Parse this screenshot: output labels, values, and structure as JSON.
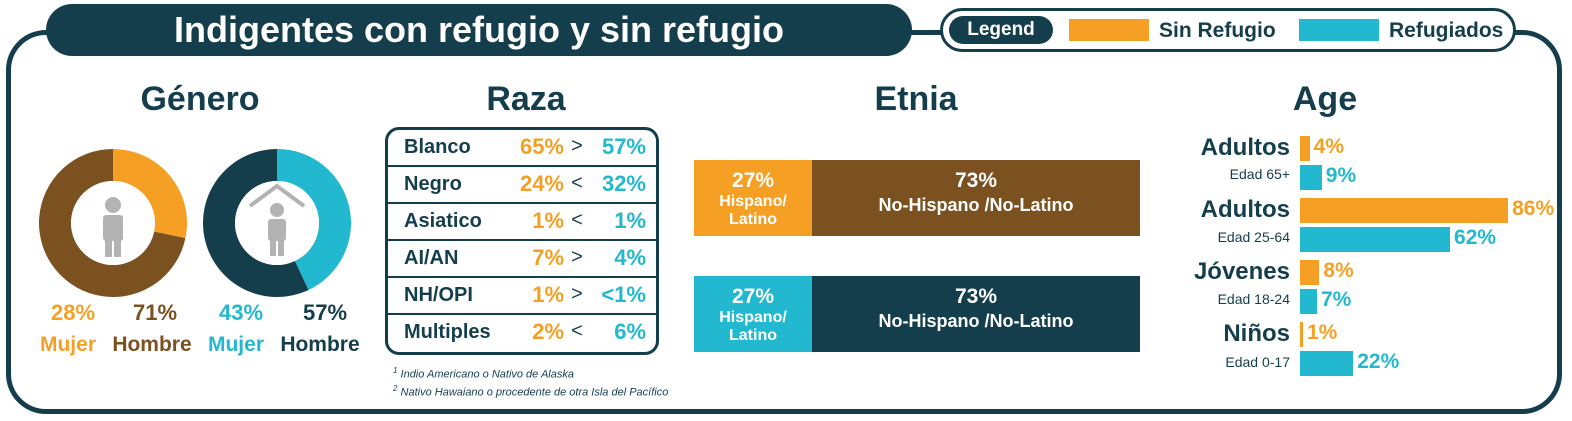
{
  "title": "Indigentes con refugio y sin refugio",
  "legend": {
    "title": "Legend",
    "items": [
      {
        "label": "Sin Refugio",
        "color": "#f5a025"
      },
      {
        "label": "Refugiados",
        "color": "#22b8cf"
      }
    ]
  },
  "colors": {
    "navy": "#153e4d",
    "brown": "#7b5120",
    "orange": "#f5a025",
    "cyan": "#22b8cf"
  },
  "genero": {
    "title": "Género",
    "sin_refugio": {
      "mujer_pct": "28%",
      "hombre_pct": "71%",
      "mujer_label": "Mujer",
      "hombre_label": "Hombre"
    },
    "refugiados": {
      "mujer_pct": "43%",
      "hombre_pct": "57%",
      "mujer_label": "Mujer",
      "hombre_label": "Hombre"
    },
    "icons": [
      "person-icon",
      "house-person-icon"
    ]
  },
  "raza": {
    "title": "Raza",
    "rows": [
      {
        "name": "Blanco",
        "a": "65%",
        "cmp": ">",
        "b": "57%"
      },
      {
        "name": "Negro",
        "a": "24%",
        "cmp": "<",
        "b": "32%"
      },
      {
        "name": "Asiatico",
        "a": "1%",
        "cmp": "<",
        "b": "1%"
      },
      {
        "name": "AI/AN",
        "a": "7%",
        "cmp": ">",
        "b": "4%"
      },
      {
        "name": "NH/OPI",
        "a": "1%",
        "cmp": ">",
        "b": "<1%"
      },
      {
        "name": "Multiples",
        "a": "2%",
        "cmp": "<",
        "b": "6%"
      }
    ],
    "footnotes": [
      {
        "num": "1",
        "text": "Indio Americano o Nativo de Alaska"
      },
      {
        "num": "2",
        "text": "Nativo Hawaiano o procedente de otra Isla del Pacífico"
      }
    ]
  },
  "etnia": {
    "title": "Etnia",
    "bars": [
      {
        "hisp_pct": "27%",
        "hisp_label": "Hispano/ Latino",
        "non_pct": "73%",
        "non_label": "No-Hispano /No-Latino"
      },
      {
        "hisp_pct": "27%",
        "hisp_label": "Hispano/ Latino",
        "non_pct": "73%",
        "non_label": "No-Hispano /No-Latino"
      }
    ]
  },
  "age": {
    "title": "Age",
    "groups": [
      {
        "label": "Adultos",
        "sub": "Edad 65+"
      },
      {
        "label": "Adultos",
        "sub": "Edad 25-64"
      },
      {
        "label": "Jóvenes",
        "sub": "Edad 18-24"
      },
      {
        "label": "Niños",
        "sub": "Edad 0-17"
      }
    ]
  },
  "chart_data": [
    {
      "type": "pie",
      "title": "Género",
      "labels": [
        "Mujer",
        "Hombre"
      ],
      "values": [
        28,
        71
      ],
      "series_name": "Sin Refugio",
      "colors": [
        "#f5a025",
        "#7b5120"
      ]
    },
    {
      "type": "pie",
      "title": "Género",
      "labels": [
        "Mujer",
        "Hombre"
      ],
      "values": [
        43,
        57
      ],
      "series_name": "Refugiados",
      "colors": [
        "#22b8cf",
        "#153e4d"
      ]
    },
    {
      "type": "table",
      "title": "Raza",
      "columns": [
        "",
        "Sin Refugio",
        "",
        "Refugiados"
      ],
      "rows": [
        [
          "Blanco",
          "65%",
          ">",
          "57%"
        ],
        [
          "Negro",
          "24%",
          "<",
          "32%"
        ],
        [
          "Asiatico",
          "1%",
          "<",
          "1%"
        ],
        [
          "AI/AN",
          "7%",
          ">",
          "4%"
        ],
        [
          "NH/OPI",
          "1%",
          ">",
          "<1%"
        ],
        [
          "Multiples",
          "2%",
          "<",
          "6%"
        ]
      ]
    },
    {
      "type": "bar",
      "title": "Etnia",
      "orientation": "horizontal",
      "stacked": true,
      "categories": [
        "Sin Refugio",
        "Refugiados"
      ],
      "series": [
        {
          "name": "Hispano/ Latino",
          "values": [
            27,
            27
          ]
        },
        {
          "name": "No-Hispano /No-Latino",
          "values": [
            73,
            73
          ]
        }
      ]
    },
    {
      "type": "bar",
      "title": "Age",
      "orientation": "horizontal",
      "categories": [
        "Adultos Edad 65+",
        "Adultos Edad 25-64",
        "Jóvenes Edad 18-24",
        "Niños Edad 0-17"
      ],
      "series": [
        {
          "name": "Sin Refugio",
          "values": [
            4,
            86,
            8,
            1
          ],
          "color": "#f5a025"
        },
        {
          "name": "Refugiados",
          "values": [
            9,
            62,
            7,
            22
          ],
          "color": "#22b8cf"
        }
      ],
      "xlim": [
        0,
        100
      ]
    }
  ]
}
